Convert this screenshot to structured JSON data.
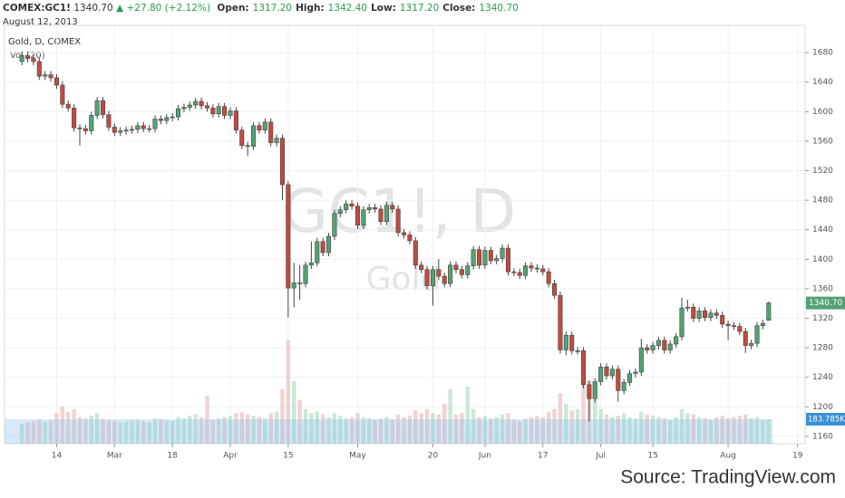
{
  "chart_data": {
    "type": "candlestick",
    "header": {
      "symbol": "COMEX:GC1!",
      "last": "1340.70",
      "change": "+27.80 (+2.12%)",
      "fields": [
        {
          "label": "Open:",
          "value": "1317.20"
        },
        {
          "label": "High:",
          "value": "1342.40"
        },
        {
          "label": "Low:",
          "value": "1317.20"
        },
        {
          "label": "Close:",
          "value": "1340.70"
        }
      ],
      "date": "August 12, 2013"
    },
    "title": "Gold, D, COMEX",
    "volume_title": "Vol (20)",
    "watermark": "GC1!, D",
    "watermark_subtitle": "Gold",
    "source": "Source: TradingView.com",
    "up_color": "#53a273",
    "down_color": "#c24a3e",
    "open": [
      1668,
      1676,
      1672,
      1668,
      1648,
      1650,
      1646,
      1636,
      1610,
      1605,
      1578,
      1577,
      1574,
      1595,
      1615,
      1596,
      1579,
      1572,
      1574,
      1575,
      1576,
      1581,
      1577,
      1577,
      1590,
      1588,
      1592,
      1593,
      1604,
      1606,
      1609,
      1614,
      1608,
      1605,
      1597,
      1607,
      1595,
      1601,
      1575,
      1554,
      1553,
      1581,
      1575,
      1586,
      1558,
      1564,
      1501,
      1361,
      1368,
      1367,
      1392,
      1395,
      1424,
      1409,
      1431,
      1462,
      1467,
      1475,
      1472,
      1446,
      1467,
      1470,
      1468,
      1451,
      1473,
      1468,
      1436,
      1433,
      1425,
      1392,
      1386,
      1364,
      1386,
      1377,
      1367,
      1392,
      1386,
      1379,
      1391,
      1413,
      1392,
      1412,
      1398,
      1401,
      1415,
      1383,
      1382,
      1378,
      1391,
      1388,
      1387,
      1383,
      1367,
      1351,
      1277,
      1297,
      1276,
      1276,
      1230,
      1211,
      1234,
      1254,
      1242,
      1251,
      1222,
      1233,
      1245,
      1247,
      1280,
      1277,
      1283,
      1290,
      1277,
      1285,
      1295,
      1334,
      1335,
      1320,
      1330,
      1321,
      1327,
      1324,
      1312,
      1310,
      1309,
      1302,
      1283,
      1286,
      1310,
      1317.2
    ],
    "high": [
      1681,
      1681,
      1677,
      1673,
      1655,
      1655,
      1651,
      1641,
      1615,
      1610,
      1583,
      1582,
      1600,
      1620,
      1620,
      1601,
      1584,
      1579,
      1580,
      1581,
      1586,
      1586,
      1582,
      1595,
      1595,
      1597,
      1598,
      1609,
      1611,
      1614,
      1619,
      1619,
      1613,
      1610,
      1612,
      1612,
      1606,
      1606,
      1580,
      1559,
      1586,
      1586,
      1591,
      1591,
      1569,
      1569,
      1506,
      1395,
      1392,
      1397,
      1424,
      1429,
      1429,
      1436,
      1467,
      1472,
      1480,
      1480,
      1477,
      1472,
      1475,
      1475,
      1473,
      1478,
      1478,
      1473,
      1441,
      1438,
      1430,
      1397,
      1391,
      1391,
      1400,
      1382,
      1397,
      1397,
      1391,
      1396,
      1418,
      1418,
      1417,
      1417,
      1406,
      1420,
      1420,
      1388,
      1387,
      1396,
      1396,
      1393,
      1392,
      1388,
      1372,
      1356,
      1302,
      1302,
      1281,
      1281,
      1235,
      1239,
      1259,
      1259,
      1256,
      1256,
      1238,
      1250,
      1252,
      1292,
      1285,
      1288,
      1295,
      1295,
      1290,
      1300,
      1348,
      1345,
      1340,
      1335,
      1335,
      1332,
      1332,
      1329,
      1317,
      1315,
      1314,
      1307,
      1291,
      1315,
      1318,
      1342.4
    ],
    "low": [
      1663,
      1667,
      1663,
      1643,
      1643,
      1641,
      1631,
      1605,
      1600,
      1573,
      1554,
      1569,
      1569,
      1590,
      1591,
      1574,
      1567,
      1567,
      1569,
      1570,
      1571,
      1572,
      1572,
      1572,
      1583,
      1583,
      1587,
      1588,
      1599,
      1601,
      1604,
      1603,
      1600,
      1592,
      1592,
      1590,
      1590,
      1570,
      1549,
      1540,
      1548,
      1570,
      1570,
      1553,
      1553,
      1480,
      1321,
      1335,
      1345,
      1362,
      1387,
      1390,
      1404,
      1404,
      1426,
      1457,
      1462,
      1467,
      1441,
      1441,
      1462,
      1463,
      1446,
      1446,
      1463,
      1431,
      1428,
      1420,
      1387,
      1381,
      1359,
      1337,
      1372,
      1362,
      1362,
      1381,
      1374,
      1374,
      1386,
      1387,
      1387,
      1393,
      1393,
      1396,
      1378,
      1377,
      1373,
      1373,
      1383,
      1382,
      1378,
      1362,
      1346,
      1272,
      1270,
      1271,
      1271,
      1225,
      1180,
      1206,
      1229,
      1237,
      1237,
      1207,
      1217,
      1228,
      1240,
      1242,
      1272,
      1272,
      1278,
      1272,
      1272,
      1280,
      1290,
      1329,
      1315,
      1315,
      1316,
      1316,
      1319,
      1307,
      1290,
      1304,
      1297,
      1273,
      1278,
      1281,
      1305,
      1317.2
    ],
    "close": [
      1676,
      1672,
      1668,
      1648,
      1650,
      1646,
      1636,
      1610,
      1605,
      1578,
      1577,
      1574,
      1595,
      1615,
      1596,
      1579,
      1572,
      1574,
      1575,
      1576,
      1581,
      1577,
      1577,
      1590,
      1588,
      1592,
      1593,
      1604,
      1606,
      1609,
      1614,
      1608,
      1605,
      1597,
      1607,
      1595,
      1601,
      1575,
      1554,
      1553,
      1581,
      1575,
      1586,
      1558,
      1564,
      1501,
      1361,
      1368,
      1367,
      1392,
      1395,
      1424,
      1409,
      1431,
      1462,
      1467,
      1475,
      1472,
      1446,
      1467,
      1470,
      1468,
      1451,
      1473,
      1468,
      1436,
      1433,
      1425,
      1392,
      1386,
      1364,
      1386,
      1377,
      1367,
      1392,
      1386,
      1379,
      1391,
      1413,
      1392,
      1412,
      1398,
      1401,
      1415,
      1383,
      1382,
      1378,
      1391,
      1388,
      1387,
      1383,
      1367,
      1351,
      1277,
      1297,
      1276,
      1276,
      1230,
      1211,
      1234,
      1254,
      1242,
      1251,
      1222,
      1233,
      1245,
      1247,
      1280,
      1277,
      1283,
      1290,
      1277,
      1285,
      1295,
      1334,
      1335,
      1320,
      1330,
      1321,
      1327,
      1324,
      1312,
      1310,
      1309,
      1302,
      1283,
      1286,
      1310,
      1313,
      1340.7
    ],
    "volume": [
      150,
      160,
      170,
      180,
      165,
      175,
      230,
      280,
      240,
      260,
      200,
      190,
      210,
      230,
      185,
      175,
      170,
      160,
      165,
      175,
      180,
      170,
      160,
      190,
      185,
      175,
      170,
      200,
      190,
      210,
      220,
      200,
      360,
      180,
      190,
      200,
      210,
      230,
      240,
      220,
      210,
      200,
      190,
      230,
      240,
      410,
      780,
      470,
      330,
      260,
      230,
      240,
      220,
      200,
      230,
      210,
      190,
      200,
      230,
      200,
      190,
      180,
      190,
      200,
      180,
      220,
      200,
      210,
      250,
      230,
      260,
      230,
      220,
      300,
      410,
      220,
      230,
      430,
      260,
      200,
      210,
      190,
      200,
      220,
      230,
      180,
      170,
      190,
      200,
      210,
      200,
      240,
      260,
      380,
      300,
      250,
      260,
      510,
      480,
      330,
      260,
      220,
      200,
      210,
      230,
      200,
      190,
      240,
      220,
      210,
      200,
      190,
      180,
      200,
      260,
      230,
      220,
      200,
      190,
      180,
      200,
      210,
      190,
      200,
      210,
      220,
      190,
      200,
      180,
      183.785
    ],
    "volume_lim": [
      0,
      1300
    ],
    "price_marker": {
      "value": 1340.7,
      "label": "1340.70"
    },
    "volume_marker": {
      "value": 183.785,
      "label": "183.785K"
    },
    "xlim": [
      -3,
      135.3
    ],
    "xticks": [
      {
        "value": 6,
        "label": "14"
      },
      {
        "value": 16,
        "label": "Mar"
      },
      {
        "value": 26,
        "label": "18"
      },
      {
        "value": 36,
        "label": "Apr"
      },
      {
        "value": 46,
        "label": "15"
      },
      {
        "value": 58,
        "label": "May"
      },
      {
        "value": 71,
        "label": "20"
      },
      {
        "value": 80,
        "label": "Jun"
      },
      {
        "value": 90,
        "label": "17"
      },
      {
        "value": 100,
        "label": "Jul"
      },
      {
        "value": 109,
        "label": "15"
      },
      {
        "value": 122,
        "label": "Aug"
      },
      {
        "value": 134,
        "label": "19"
      }
    ],
    "ylim": [
      1150,
      1717
    ],
    "yticks": [
      1160,
      1200,
      1240,
      1280,
      1320,
      1360,
      1400,
      1440,
      1480,
      1520,
      1560,
      1600,
      1640,
      1680
    ],
    "grid": true
  }
}
